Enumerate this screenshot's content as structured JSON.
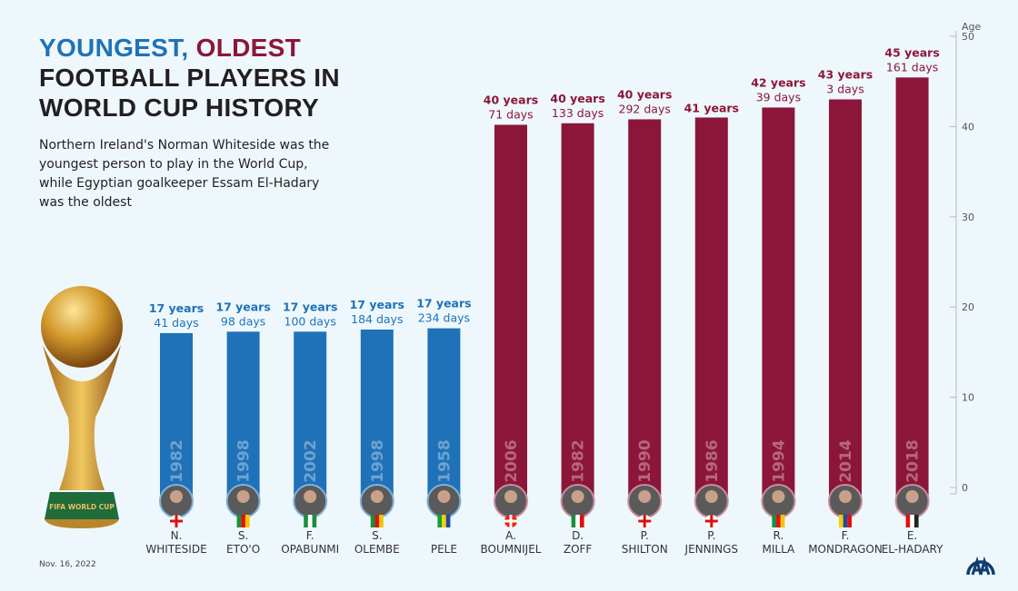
{
  "title": {
    "part1": "YOUNGEST,",
    "part2": "OLDEST",
    "part3": "FOOTBALL PLAYERS IN WORLD CUP HISTORY"
  },
  "subtitle": "Northern Ireland's Norman Whiteside was the youngest person to play in the World Cup, while Egyptian goalkeeper Essam El-Hadary was the oldest",
  "date": "Nov. 16, 2022",
  "logo_text": "AA",
  "trophy_text": "FIFA WORLD CUP",
  "colors": {
    "youngest": "#1f72b8",
    "oldest": "#8c1639",
    "background": "#eef7fb"
  },
  "chart_data": {
    "type": "bar",
    "ylabel": "Age",
    "ylim": [
      0,
      50
    ],
    "yticks": [
      0,
      10,
      20,
      30,
      40,
      50
    ],
    "grid": false,
    "categories": [
      "N. WHITESIDE",
      "S. ETO'O",
      "F. OPABUNMI",
      "S. OLEMBE",
      "PELE",
      "A. BOUMNIJEL",
      "D. ZOFF",
      "P. SHILTON",
      "P. JENNINGS",
      "R. MILLA",
      "F. MONDRAGON",
      "E. EL-HADARY"
    ],
    "bars": [
      {
        "name1": "N.",
        "name2": "WHITESIDE",
        "years": 17,
        "days": 41,
        "years_label": "17 years",
        "days_label": "41 days",
        "world_cup": "1982",
        "group": "youngest",
        "flag": "northern-ireland"
      },
      {
        "name1": "S.",
        "name2": "ETO'O",
        "years": 17,
        "days": 98,
        "years_label": "17 years",
        "days_label": "98 days",
        "world_cup": "1998",
        "group": "youngest",
        "flag": "cameroon"
      },
      {
        "name1": "F.",
        "name2": "OPABUNMI",
        "years": 17,
        "days": 100,
        "years_label": "17 years",
        "days_label": "100 days",
        "world_cup": "2002",
        "group": "youngest",
        "flag": "nigeria"
      },
      {
        "name1": "S.",
        "name2": "OLEMBE",
        "years": 17,
        "days": 184,
        "years_label": "17 years",
        "days_label": "184 days",
        "world_cup": "1998",
        "group": "youngest",
        "flag": "cameroon"
      },
      {
        "name1": "",
        "name2": "PELE",
        "years": 17,
        "days": 234,
        "years_label": "17 years",
        "days_label": "234 days",
        "world_cup": "1958",
        "group": "youngest",
        "flag": "brazil"
      },
      {
        "name1": "A.",
        "name2": "BOUMNIJEL",
        "years": 40,
        "days": 71,
        "years_label": "40 years",
        "days_label": "71 days",
        "world_cup": "2006",
        "group": "oldest",
        "flag": "tunisia"
      },
      {
        "name1": "D.",
        "name2": "ZOFF",
        "years": 40,
        "days": 133,
        "years_label": "40 years",
        "days_label": "133 days",
        "world_cup": "1982",
        "group": "oldest",
        "flag": "italy"
      },
      {
        "name1": "P.",
        "name2": "SHILTON",
        "years": 40,
        "days": 292,
        "years_label": "40 years",
        "days_label": "292 days",
        "world_cup": "1990",
        "group": "oldest",
        "flag": "england"
      },
      {
        "name1": "P.",
        "name2": "JENNINGS",
        "years": 41,
        "days": 0,
        "years_label": "41 years",
        "days_label": "",
        "world_cup": "1986",
        "group": "oldest",
        "flag": "northern-ireland"
      },
      {
        "name1": "R.",
        "name2": "MILLA",
        "years": 42,
        "days": 39,
        "years_label": "42 years",
        "days_label": "39 days",
        "world_cup": "1994",
        "group": "oldest",
        "flag": "cameroon"
      },
      {
        "name1": "F.",
        "name2": "MONDRAGON",
        "years": 43,
        "days": 3,
        "years_label": "43 years",
        "days_label": "3 days",
        "world_cup": "2014",
        "group": "oldest",
        "flag": "colombia"
      },
      {
        "name1": "E.",
        "name2": "EL-HADARY",
        "years": 45,
        "days": 161,
        "years_label": "45 years",
        "days_label": "161 days",
        "world_cup": "2018",
        "group": "oldest",
        "flag": "egypt"
      }
    ]
  }
}
